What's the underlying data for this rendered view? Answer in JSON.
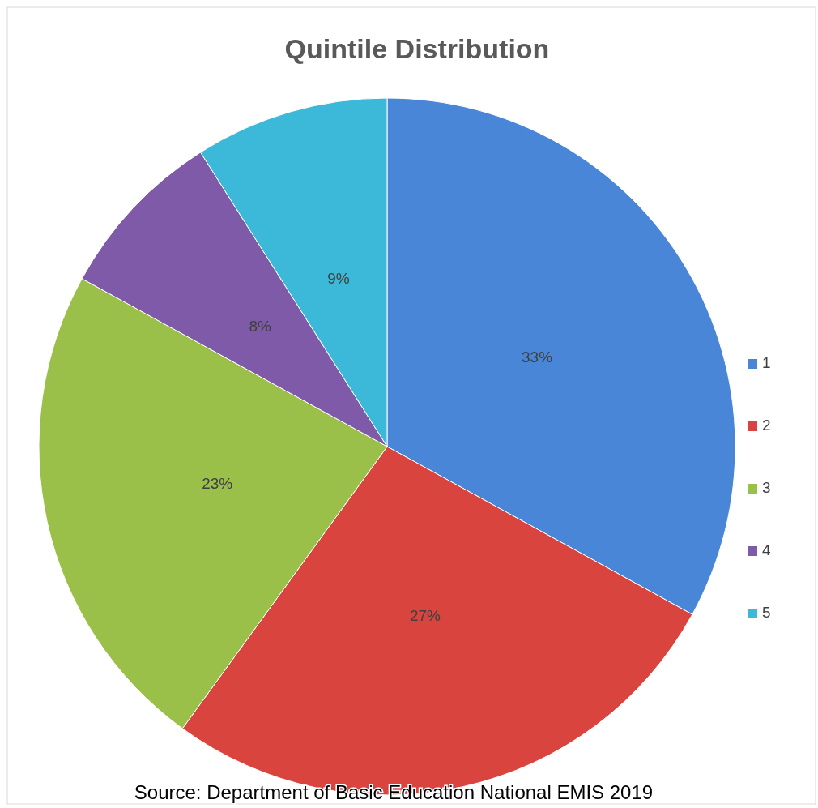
{
  "chart_data": {
    "type": "pie",
    "title": "Quintile Distribution",
    "categories": [
      "1",
      "2",
      "3",
      "4",
      "5"
    ],
    "values": [
      33,
      27,
      23,
      8,
      9
    ],
    "colors": [
      "#4a86d8",
      "#d9443f",
      "#9bc04a",
      "#7f5aa8",
      "#3cb8d8"
    ],
    "value_labels": [
      "33%",
      "27%",
      "23%",
      "8%",
      "9%"
    ],
    "legend": "right",
    "annotations": [
      "Source: Department of Basic Education National EMIS 2019"
    ]
  }
}
